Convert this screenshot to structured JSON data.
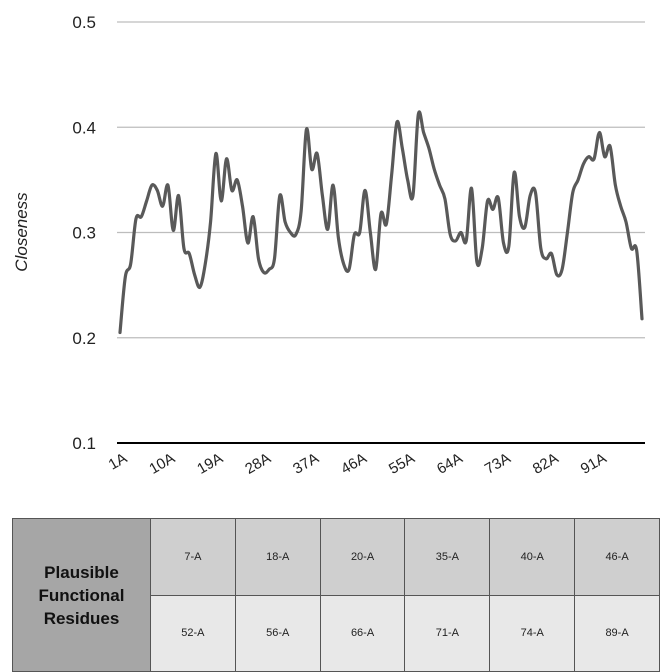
{
  "chart_data": {
    "type": "line",
    "ylabel": "Closeness",
    "xlabel": "",
    "ylim": [
      0.1,
      0.5
    ],
    "yticks": [
      "0.1",
      "0.2",
      "0.3",
      "0.4",
      "0.5"
    ],
    "xtick_labels": [
      "1A",
      "10A",
      "19A",
      "28A",
      "37A",
      "46A",
      "55A",
      "64A",
      "73A",
      "82A",
      "91A"
    ],
    "grid": true,
    "series_color": "#595959",
    "x": [
      1,
      2,
      3,
      4,
      5,
      6,
      7,
      8,
      9,
      10,
      11,
      12,
      13,
      14,
      15,
      16,
      17,
      18,
      19,
      20,
      21,
      22,
      23,
      24,
      25,
      26,
      27,
      28,
      29,
      30,
      31,
      32,
      33,
      34,
      35,
      36,
      37,
      38,
      39,
      40,
      41,
      42,
      43,
      44,
      45,
      46,
      47,
      48,
      49,
      50,
      51,
      52,
      53,
      54,
      55,
      56,
      57,
      58,
      59,
      60,
      61,
      62,
      63,
      64,
      65,
      66,
      67,
      68,
      69,
      70,
      71,
      72,
      73,
      74,
      75,
      76,
      77,
      78,
      79,
      80,
      81,
      82,
      83,
      84,
      85,
      86,
      87,
      88,
      89,
      90,
      91,
      92,
      93,
      94,
      95,
      96,
      97,
      98,
      99
    ],
    "values": [
      0.205,
      0.258,
      0.27,
      0.313,
      0.315,
      0.33,
      0.345,
      0.34,
      0.325,
      0.345,
      0.302,
      0.335,
      0.285,
      0.28,
      0.26,
      0.248,
      0.27,
      0.31,
      0.375,
      0.33,
      0.37,
      0.34,
      0.35,
      0.325,
      0.29,
      0.315,
      0.275,
      0.262,
      0.265,
      0.275,
      0.335,
      0.31,
      0.3,
      0.298,
      0.32,
      0.398,
      0.36,
      0.375,
      0.335,
      0.303,
      0.345,
      0.295,
      0.27,
      0.265,
      0.298,
      0.3,
      0.34,
      0.3,
      0.265,
      0.318,
      0.308,
      0.355,
      0.405,
      0.38,
      0.35,
      0.335,
      0.412,
      0.395,
      0.38,
      0.36,
      0.345,
      0.332,
      0.298,
      0.292,
      0.3,
      0.292,
      0.342,
      0.272,
      0.285,
      0.33,
      0.322,
      0.333,
      0.29,
      0.287,
      0.357,
      0.315,
      0.305,
      0.335,
      0.338,
      0.285,
      0.275,
      0.28,
      0.26,
      0.265,
      0.3,
      0.338,
      0.35,
      0.365,
      0.372,
      0.37,
      0.395,
      0.372,
      0.382,
      0.345,
      0.325,
      0.31,
      0.285,
      0.283,
      0.218
    ]
  },
  "table": {
    "header": "Plausible Functional Residues",
    "rows": [
      [
        "7-A",
        "18-A",
        "20-A",
        "35-A",
        "40-A",
        "46-A"
      ],
      [
        "52-A",
        "56-A",
        "66-A",
        "71-A",
        "74-A",
        "89-A"
      ]
    ]
  }
}
